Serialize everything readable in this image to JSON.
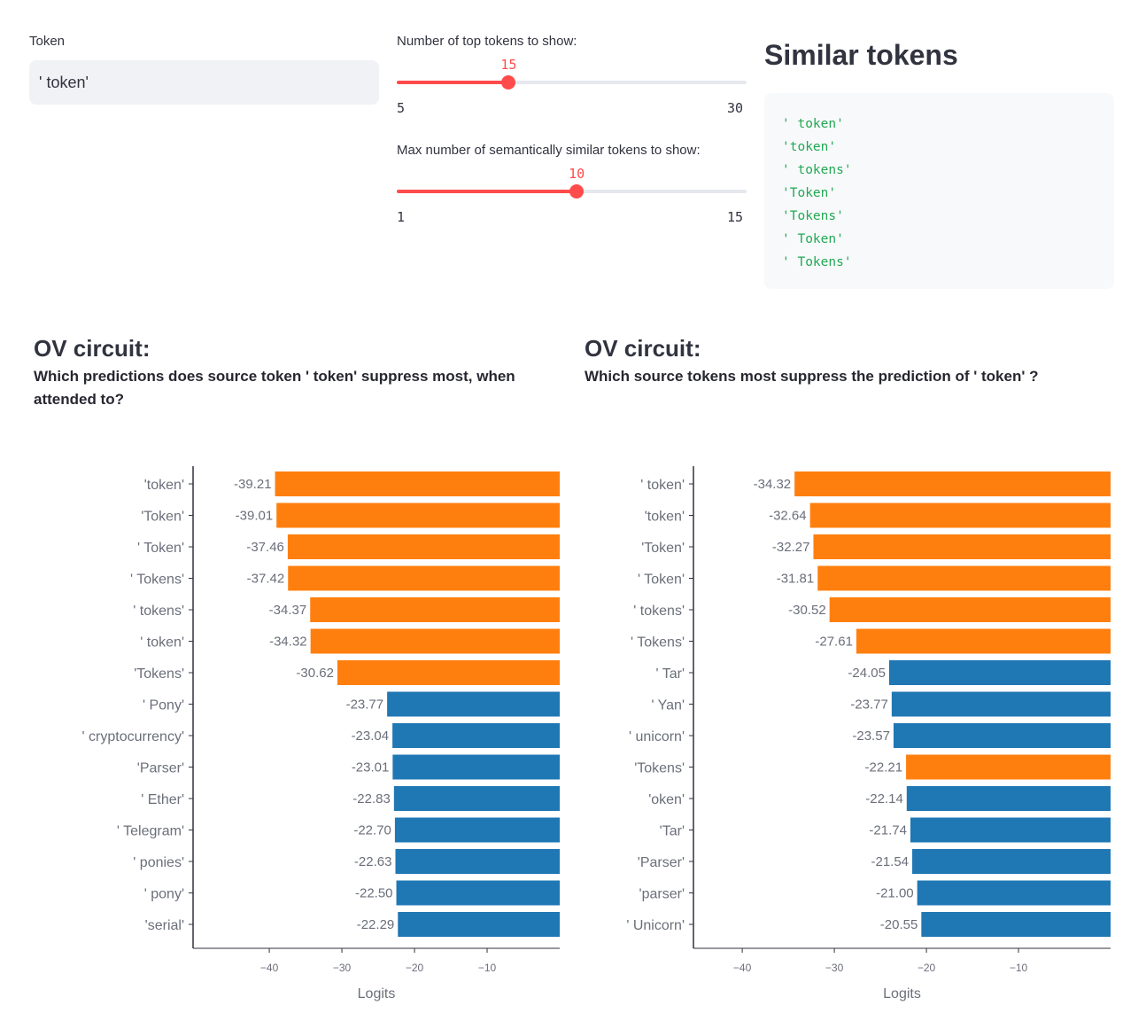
{
  "controls": {
    "token_label": "Token",
    "token_value": "' token'",
    "top_tokens": {
      "label": "Number of top tokens to show:",
      "min": 5,
      "max": 30,
      "value": 15,
      "min_label": "5",
      "max_label": "30",
      "value_label": "15"
    },
    "similar_tokens": {
      "label": "Max number of semantically similar tokens to show:",
      "min": 1,
      "max": 15,
      "value": 10,
      "min_label": "1",
      "max_label": "15",
      "value_label": "10"
    }
  },
  "similar": {
    "title": "Similar tokens",
    "tokens": [
      "' token'",
      "'token'",
      "' tokens'",
      "'Token'",
      "'Tokens'",
      "' Token'",
      "' Tokens'"
    ]
  },
  "left_heading": {
    "title": "OV circuit:",
    "subtitle": "Which predictions does source token ' token' suppress most, when attended to?"
  },
  "right_heading": {
    "title": "OV circuit:",
    "subtitle": "Which source tokens most suppress the prediction of ' token' ?"
  },
  "colors": {
    "similar": "#ff7f0e",
    "other": "#1f77b4",
    "accent": "#ff4b4b",
    "code": "#22a853"
  },
  "chart_data": [
    {
      "type": "bar",
      "orientation": "horizontal",
      "categories": [
        "'token'",
        "'Token'",
        "' Token'",
        "' Tokens'",
        "' tokens'",
        "' token'",
        "'Tokens'",
        "' Pony'",
        "' cryptocurrency'",
        "'Parser'",
        "' Ether'",
        "' Telegram'",
        "' ponies'",
        "' pony'",
        "'serial'"
      ],
      "values": [
        -39.21,
        -39.01,
        -37.46,
        -37.42,
        -34.37,
        -34.32,
        -30.62,
        -23.77,
        -23.04,
        -23.01,
        -22.83,
        -22.7,
        -22.63,
        -22.5,
        -22.29
      ],
      "value_labels": [
        "-39.21",
        "-39.01",
        "-37.46",
        "-37.42",
        "-34.37",
        "-34.32",
        "-30.62",
        "-23.77",
        "-23.04",
        "-23.01",
        "-22.83",
        "-22.70",
        "-22.63",
        "-22.50",
        "-22.29"
      ],
      "highlight": [
        true,
        true,
        true,
        true,
        true,
        true,
        true,
        false,
        false,
        false,
        false,
        false,
        false,
        false,
        false
      ],
      "xlabel": "Logits",
      "xlim": [
        -50.5,
        0
      ],
      "xticks": [
        -40,
        -30,
        -20,
        -10
      ],
      "xtick_labels": [
        "−40",
        "−30",
        "−20",
        "−10"
      ]
    },
    {
      "type": "bar",
      "orientation": "horizontal",
      "categories": [
        "' token'",
        "'token'",
        "'Token'",
        "' Token'",
        "' tokens'",
        "' Tokens'",
        "' Tar'",
        "' Yan'",
        "' unicorn'",
        "'Tokens'",
        "'oken'",
        "'Tar'",
        "'Parser'",
        "'parser'",
        "' Unicorn'"
      ],
      "values": [
        -34.32,
        -32.64,
        -32.27,
        -31.81,
        -30.52,
        -27.61,
        -24.05,
        -23.77,
        -23.57,
        -22.21,
        -22.14,
        -21.74,
        -21.54,
        -21.0,
        -20.55
      ],
      "value_labels": [
        "-34.32",
        "-32.64",
        "-32.27",
        "-31.81",
        "-30.52",
        "-27.61",
        "-24.05",
        "-23.77",
        "-23.57",
        "-22.21",
        "-22.14",
        "-21.74",
        "-21.54",
        "-21.00",
        "-20.55"
      ],
      "highlight": [
        true,
        true,
        true,
        true,
        true,
        true,
        false,
        false,
        false,
        true,
        false,
        false,
        false,
        false,
        false
      ],
      "xlabel": "Logits",
      "xlim": [
        -45.3,
        0
      ],
      "xticks": [
        -40,
        -30,
        -20,
        -10
      ],
      "xtick_labels": [
        "−40",
        "−30",
        "−20",
        "−10"
      ]
    }
  ]
}
